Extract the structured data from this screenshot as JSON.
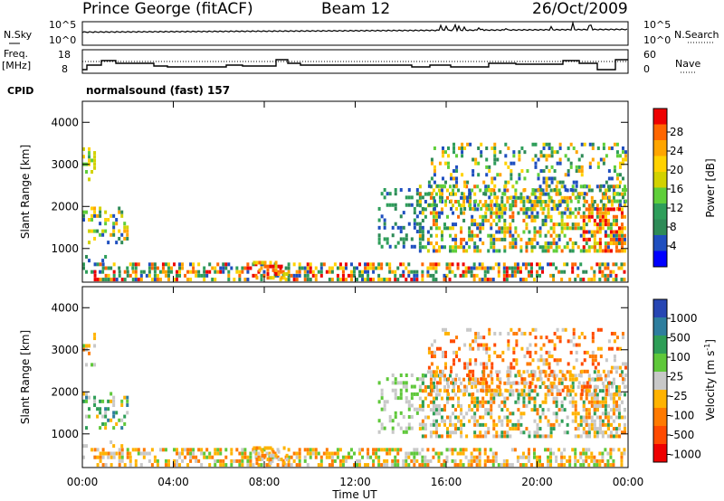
{
  "header": {
    "station": "Prince George (fitACF)",
    "beam": "Beam 12",
    "date": "26/Oct/2009"
  },
  "panel_labels": {
    "nsky": "N.Sky",
    "nsearch": "N.Search",
    "freq_line1": "Freq.",
    "freq_line2": "[MHz]",
    "nave": "Nave",
    "cpid": "CPID",
    "cpid_value": "normalsound (fast) 157"
  },
  "noise_axis": {
    "left_top": "10^5",
    "left_bottom": "10^0",
    "right_top": "10^5",
    "right_bottom": "10^0"
  },
  "freq_axis": {
    "left_top": "18",
    "left_bottom": "8",
    "right_top": "60",
    "right_bottom": "0"
  },
  "colorbars": {
    "power": {
      "label": "Power [dB]",
      "ticks": [
        "28",
        "24",
        "20",
        "16",
        "12",
        "8",
        "4"
      ],
      "colors": [
        "#ee0000",
        "#ff6600",
        "#ffa500",
        "#ffd200",
        "#d2d200",
        "#5fcf3a",
        "#2e9e5a",
        "#2e8b57",
        "#1f4fbf",
        "#0000ff"
      ]
    },
    "velocity": {
      "label": "Velocity [m s^-1]",
      "ticks": [
        "1000",
        "500",
        "100",
        "25",
        "-25",
        "-100",
        "-500",
        "-1000"
      ],
      "colors": [
        "#2746b3",
        "#2e7e9e",
        "#2e9e57",
        "#5fc83a",
        "#c8c8c8",
        "#ffb300",
        "#ff7a00",
        "#ff4a00",
        "#ee0000"
      ]
    }
  },
  "chart_data": [
    {
      "type": "heatmap",
      "title": "",
      "ylabel": "Slant Range [km]",
      "yticks": [
        "1000",
        "2000",
        "3000",
        "4000"
      ],
      "ylim": [
        200,
        4500
      ],
      "colorbar": "Power [dB]"
    },
    {
      "type": "heatmap",
      "title": "",
      "ylabel": "Slant Range [km]",
      "yticks": [
        "1000",
        "2000",
        "3000",
        "4000"
      ],
      "ylim": [
        200,
        4500
      ],
      "xlabel": "Time UT",
      "xticks": [
        "00:00",
        "04:00",
        "08:00",
        "12:00",
        "16:00",
        "20:00",
        "00:00"
      ],
      "colorbar": "Velocity [m s^-1]"
    }
  ]
}
